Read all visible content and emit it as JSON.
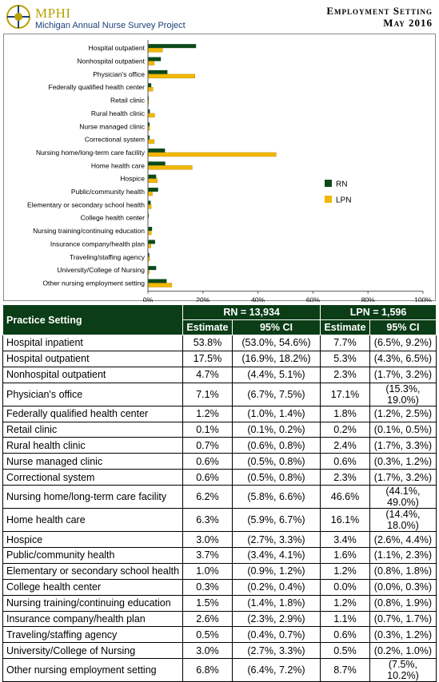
{
  "header": {
    "logo_big": "MPHI",
    "logo_small": "Michigan Annual Nurse Survey Project",
    "title_line1": "Employment Setting",
    "title_line2": "May 2016"
  },
  "colors": {
    "rn": "#0b4a1a",
    "lpn": "#f2b705",
    "header_bg": "#0b3d17",
    "logo_gold": "#b8a000",
    "logo_blue": "#1a3f7a"
  },
  "chart_data": {
    "type": "bar",
    "orientation": "horizontal",
    "categories": [
      "Hospital outpatient",
      "Nonhospital outpatient",
      "Physician's office",
      "Federally qualified health center",
      "Retail clinic",
      "Rural health clinic",
      "Nurse managed clinic",
      "Correctional system",
      "Nursing home/long-term care facility",
      "Home health care",
      "Hospice",
      "Public/community health",
      "Elementary or secondary school health",
      "College health center",
      "Nursing training/continuing education",
      "Insurance company/health plan",
      "Traveling/staffing agency",
      "University/College of Nursing",
      "Other nursing employment setting"
    ],
    "series": [
      {
        "name": "RN",
        "values": [
          17.5,
          4.7,
          7.1,
          1.2,
          0.1,
          0.7,
          0.6,
          0.6,
          6.2,
          6.3,
          3.0,
          3.7,
          1.0,
          0.3,
          1.5,
          2.6,
          0.5,
          3.0,
          6.8
        ]
      },
      {
        "name": "LPN",
        "values": [
          5.3,
          2.3,
          17.1,
          1.8,
          0.2,
          2.4,
          0.6,
          2.3,
          46.6,
          16.1,
          3.4,
          1.6,
          1.2,
          0.0,
          1.2,
          1.1,
          0.6,
          0.5,
          8.7
        ]
      }
    ],
    "xticks": [
      "0%",
      "20%",
      "40%",
      "60%",
      "80%",
      "100%"
    ],
    "xlim": [
      0,
      100
    ],
    "legend": "right",
    "grid": false
  },
  "table": {
    "col_setting": "Practice Setting",
    "rn_group": "RN = 13,934",
    "lpn_group": "LPN = 1,596",
    "col_estimate": "Estimate",
    "col_ci": "95% CI",
    "rows": [
      [
        "Hospital inpatient",
        "53.8%",
        "(53.0%, 54.6%)",
        "7.7%",
        "(6.5%, 9.2%)"
      ],
      [
        "Hospital outpatient",
        "17.5%",
        "(16.9%, 18.2%)",
        "5.3%",
        "(4.3%, 6.5%)"
      ],
      [
        "Nonhospital outpatient",
        "4.7%",
        "(4.4%, 5.1%)",
        "2.3%",
        "(1.7%, 3.2%)"
      ],
      [
        "Physician's office",
        "7.1%",
        "(6.7%, 7.5%)",
        "17.1%",
        "(15.3%, 19.0%)"
      ],
      [
        "Federally qualified health center",
        "1.2%",
        "(1.0%, 1.4%)",
        "1.8%",
        "(1.2%, 2.5%)"
      ],
      [
        "Retail clinic",
        "0.1%",
        "(0.1%, 0.2%)",
        "0.2%",
        "(0.1%, 0.5%)"
      ],
      [
        "Rural health clinic",
        "0.7%",
        "(0.6%, 0.8%)",
        "2.4%",
        "(1.7%, 3.3%)"
      ],
      [
        "Nurse managed clinic",
        "0.6%",
        "(0.5%, 0.8%)",
        "0.6%",
        "(0.3%, 1.2%)"
      ],
      [
        "Correctional system",
        "0.6%",
        "(0.5%, 0.8%)",
        "2.3%",
        "(1.7%, 3.2%)"
      ],
      [
        "Nursing home/long-term care facility",
        "6.2%",
        "(5.8%, 6.6%)",
        "46.6%",
        "(44.1%, 49.0%)"
      ],
      [
        "Home health care",
        "6.3%",
        "(5.9%, 6.7%)",
        "16.1%",
        "(14.4%, 18.0%)"
      ],
      [
        "Hospice",
        "3.0%",
        "(2.7%, 3.3%)",
        "3.4%",
        "(2.6%, 4.4%)"
      ],
      [
        "Public/community health",
        "3.7%",
        "(3.4%, 4.1%)",
        "1.6%",
        "(1.1%, 2.3%)"
      ],
      [
        "Elementary or secondary school health",
        "1.0%",
        "(0.9%, 1.2%)",
        "1.2%",
        "(0.8%, 1.8%)"
      ],
      [
        "College health center",
        "0.3%",
        "(0.2%, 0.4%)",
        "0.0%",
        "(0.0%, 0.3%)"
      ],
      [
        "Nursing training/continuing education",
        "1.5%",
        "(1.4%, 1.8%)",
        "1.2%",
        "(0.8%, 1.9%)"
      ],
      [
        "Insurance company/health plan",
        "2.6%",
        "(2.3%, 2.9%)",
        "1.1%",
        "(0.7%, 1.7%)"
      ],
      [
        "Traveling/staffing agency",
        "0.5%",
        "(0.4%, 0.7%)",
        "0.6%",
        "(0.3%, 1.2%)"
      ],
      [
        "University/College of Nursing",
        "3.0%",
        "(2.7%, 3.3%)",
        "0.5%",
        "(0.2%, 1.0%)"
      ],
      [
        "Other nursing employment setting",
        "6.8%",
        "(6.4%, 7.2%)",
        "8.7%",
        "(7.5%, 10.2%)"
      ]
    ]
  }
}
